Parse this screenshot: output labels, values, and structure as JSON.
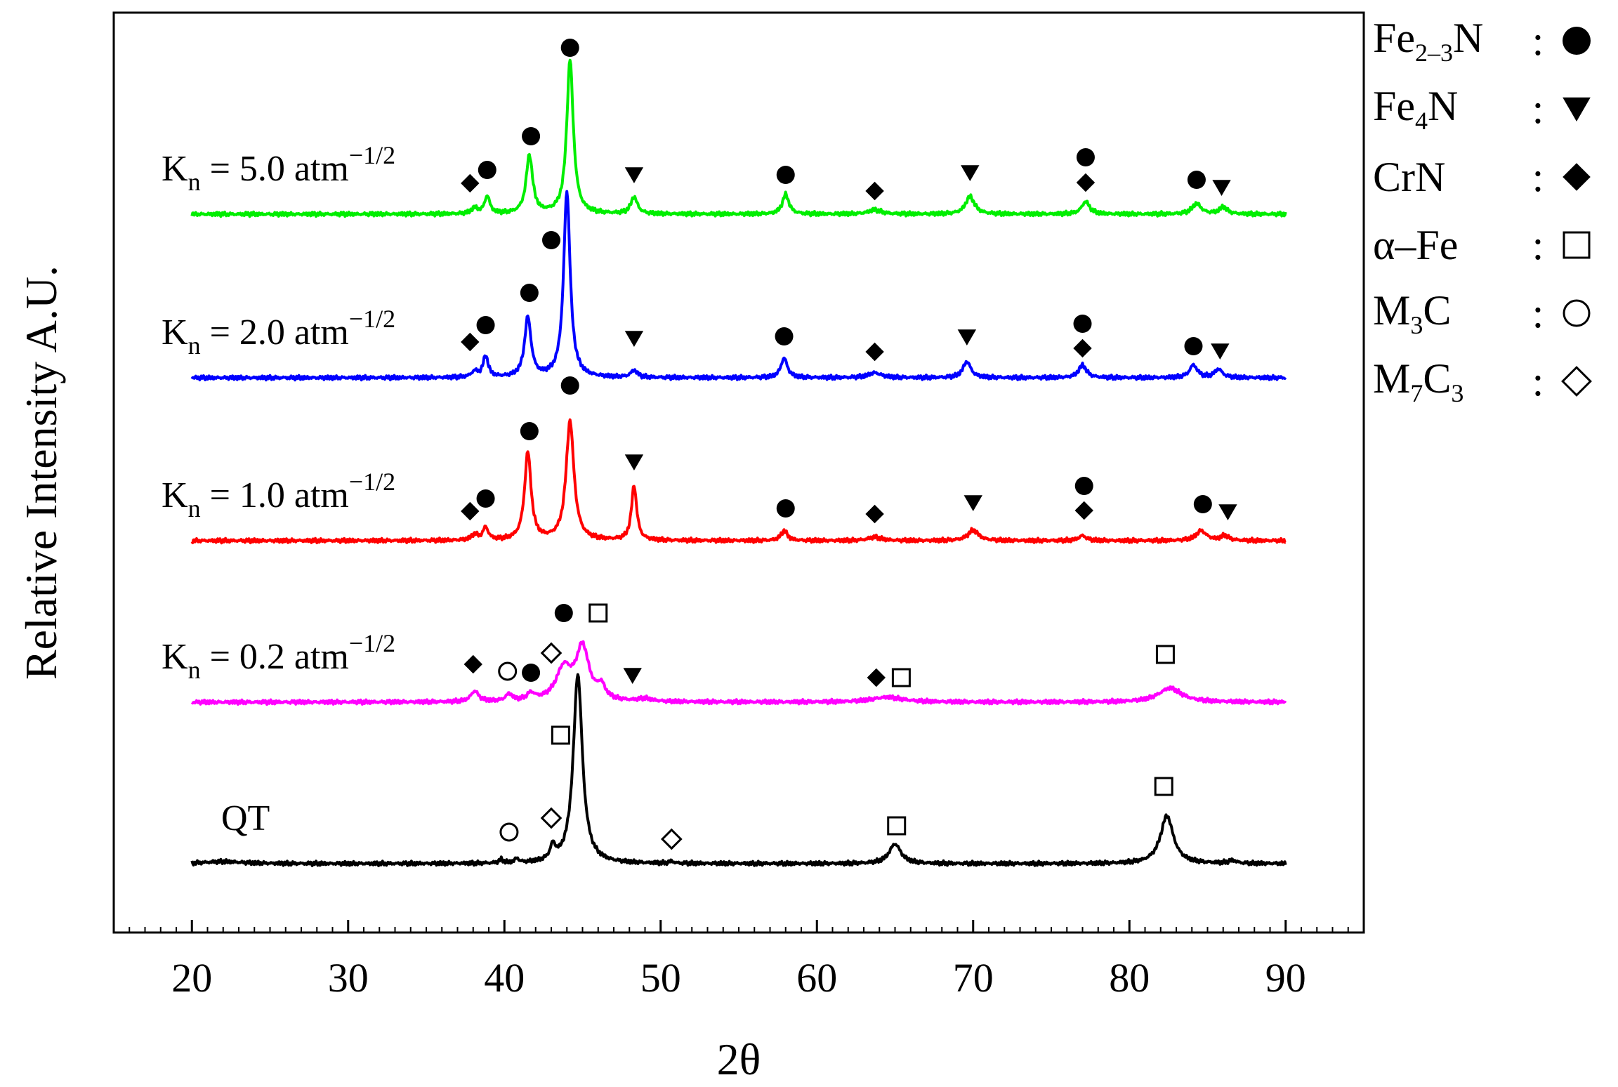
{
  "chart_data": {
    "type": "line",
    "title": "",
    "xlabel": "2θ",
    "ylabel": "Relative Intensity A.U.",
    "xlim": [
      15,
      95
    ],
    "x_ticks": [
      "20",
      "30",
      "40",
      "50",
      "60",
      "70",
      "80",
      "90"
    ],
    "x_tick_values": [
      20,
      30,
      40,
      50,
      60,
      70,
      80,
      90
    ],
    "minor_tick_step": 1,
    "y_ticks": [],
    "series": [
      {
        "name": "QT",
        "label_text": "QT",
        "color": "#000000",
        "baseline": 0,
        "peaks": [
          [
            22,
            3,
            1.5
          ],
          [
            39.8,
            5,
            0.15
          ],
          [
            40.8,
            6,
            0.15
          ],
          [
            43.1,
            20,
            0.2
          ],
          [
            44.7,
            270,
            0.35
          ],
          [
            50.7,
            3,
            0.15
          ],
          [
            65.0,
            28,
            0.45
          ],
          [
            82.4,
            68,
            0.5
          ],
          [
            86.6,
            4,
            0.3
          ]
        ],
        "markers": [
          {
            "symbol": "open-circle",
            "x": 40.3,
            "y": 45
          },
          {
            "symbol": "open-diamond",
            "x": 43.0,
            "y": 65
          },
          {
            "symbol": "open-square",
            "x": 43.6,
            "y": 183
          },
          {
            "symbol": "open-diamond",
            "x": 50.7,
            "y": 35
          },
          {
            "symbol": "open-square",
            "x": 65.1,
            "y": 54
          },
          {
            "symbol": "open-square",
            "x": 82.2,
            "y": 110
          }
        ]
      },
      {
        "name": "Kn = 0.2",
        "label_text": "K",
        "label_sub": "n",
        "label_rest": " = 0.2 atm",
        "label_sup": "−1/2",
        "color": "#ff00ff",
        "baseline": 230,
        "peaks": [
          [
            38.1,
            15,
            0.3
          ],
          [
            40.3,
            10,
            0.25
          ],
          [
            41.7,
            10,
            0.3
          ],
          [
            43.8,
            45,
            0.6
          ],
          [
            45.0,
            75,
            0.5
          ],
          [
            46.2,
            18,
            0.3
          ],
          [
            49.0,
            4,
            0.5
          ],
          [
            64.5,
            7,
            1.2
          ],
          [
            82.6,
            20,
            0.9
          ]
        ],
        "markers": [
          {
            "symbol": "filled-diamond",
            "x": 38.0,
            "y": 54
          },
          {
            "symbol": "open-circle",
            "x": 40.2,
            "y": 44
          },
          {
            "symbol": "filled-circle",
            "x": 41.7,
            "y": 42
          },
          {
            "symbol": "open-diamond",
            "x": 43.0,
            "y": 70
          },
          {
            "symbol": "filled-circle",
            "x": 43.8,
            "y": 127
          },
          {
            "symbol": "open-square",
            "x": 46.0,
            "y": 127
          },
          {
            "symbol": "filled-triangle-down",
            "x": 48.2,
            "y": 38
          },
          {
            "symbol": "filled-diamond",
            "x": 63.8,
            "y": 35
          },
          {
            "symbol": "open-square",
            "x": 65.4,
            "y": 35
          },
          {
            "symbol": "open-square",
            "x": 82.3,
            "y": 68
          }
        ]
      },
      {
        "name": "Kn = 1.0",
        "label_text": "K",
        "label_sub": "n",
        "label_rest": " = 1.0 atm",
        "label_sup": "−1/2",
        "color": "#ff0000",
        "baseline": 460,
        "peaks": [
          [
            38.1,
            8,
            0.25
          ],
          [
            38.8,
            18,
            0.2
          ],
          [
            41.5,
            125,
            0.25
          ],
          [
            44.2,
            170,
            0.3
          ],
          [
            48.3,
            78,
            0.2
          ],
          [
            57.9,
            14,
            0.25
          ],
          [
            63.7,
            5,
            0.5
          ],
          [
            70.0,
            15,
            0.4
          ],
          [
            77.0,
            7,
            0.3
          ],
          [
            84.6,
            14,
            0.4
          ],
          [
            86.1,
            7,
            0.3
          ]
        ],
        "markers": [
          {
            "symbol": "filled-diamond",
            "x": 37.8,
            "y": 42
          },
          {
            "symbol": "filled-circle",
            "x": 38.8,
            "y": 60
          },
          {
            "symbol": "filled-circle",
            "x": 41.6,
            "y": 156
          },
          {
            "symbol": "filled-circle",
            "x": 44.2,
            "y": 221
          },
          {
            "symbol": "filled-triangle-down",
            "x": 48.3,
            "y": 112
          },
          {
            "symbol": "filled-circle",
            "x": 58.0,
            "y": 46
          },
          {
            "symbol": "filled-diamond",
            "x": 63.7,
            "y": 38
          },
          {
            "symbol": "filled-triangle-down",
            "x": 70.0,
            "y": 54
          },
          {
            "symbol": "filled-diamond",
            "x": 77.1,
            "y": 43
          },
          {
            "symbol": "filled-circle",
            "x": 77.1,
            "y": 78
          },
          {
            "symbol": "filled-circle",
            "x": 84.7,
            "y": 52
          },
          {
            "symbol": "filled-triangle-down",
            "x": 86.3,
            "y": 41
          }
        ]
      },
      {
        "name": "Kn = 2.0",
        "label_text": "K",
        "label_sub": "n",
        "label_rest": " = 2.0 atm",
        "label_sup": "−1/2",
        "color": "#0000ff",
        "baseline": 692,
        "peaks": [
          [
            38.1,
            8,
            0.25
          ],
          [
            38.8,
            30,
            0.2
          ],
          [
            41.5,
            85,
            0.25
          ],
          [
            44.0,
            265,
            0.25
          ],
          [
            48.3,
            10,
            0.25
          ],
          [
            57.9,
            28,
            0.25
          ],
          [
            63.7,
            7,
            0.5
          ],
          [
            69.6,
            23,
            0.3
          ],
          [
            77.0,
            18,
            0.3
          ],
          [
            84.1,
            18,
            0.3
          ],
          [
            85.7,
            12,
            0.3
          ]
        ],
        "markers": [
          {
            "symbol": "filled-diamond",
            "x": 37.8,
            "y": 51
          },
          {
            "symbol": "filled-circle",
            "x": 38.8,
            "y": 75
          },
          {
            "symbol": "filled-circle",
            "x": 41.6,
            "y": 121
          },
          {
            "symbol": "filled-circle",
            "x": 43.0,
            "y": 196
          },
          {
            "symbol": "filled-triangle-down",
            "x": 48.3,
            "y": 56
          },
          {
            "symbol": "filled-circle",
            "x": 57.9,
            "y": 59
          },
          {
            "symbol": "filled-diamond",
            "x": 63.7,
            "y": 37
          },
          {
            "symbol": "filled-triangle-down",
            "x": 69.6,
            "y": 58
          },
          {
            "symbol": "filled-diamond",
            "x": 77.0,
            "y": 42
          },
          {
            "symbol": "filled-circle",
            "x": 77.0,
            "y": 77
          },
          {
            "symbol": "filled-circle",
            "x": 84.1,
            "y": 45
          },
          {
            "symbol": "filled-triangle-down",
            "x": 85.8,
            "y": 38
          }
        ]
      },
      {
        "name": "Kn = 5.0",
        "label_text": "K",
        "label_sub": "n",
        "label_rest": " = 5.0 atm",
        "label_sup": "−1/2",
        "color": "#00ee00",
        "baseline": 925,
        "peaks": [
          [
            38.1,
            8,
            0.25
          ],
          [
            38.9,
            25,
            0.2
          ],
          [
            41.6,
            83,
            0.25
          ],
          [
            44.2,
            220,
            0.25
          ],
          [
            48.3,
            24,
            0.25
          ],
          [
            58.0,
            28,
            0.25
          ],
          [
            63.7,
            6,
            0.5
          ],
          [
            69.8,
            25,
            0.35
          ],
          [
            77.2,
            18,
            0.3
          ],
          [
            84.3,
            15,
            0.35
          ],
          [
            86.0,
            10,
            0.3
          ]
        ],
        "markers": [
          {
            "symbol": "filled-diamond",
            "x": 37.8,
            "y": 44
          },
          {
            "symbol": "filled-circle",
            "x": 38.9,
            "y": 63
          },
          {
            "symbol": "filled-circle",
            "x": 41.7,
            "y": 111
          },
          {
            "symbol": "filled-circle",
            "x": 44.2,
            "y": 237
          },
          {
            "symbol": "filled-triangle-down",
            "x": 48.3,
            "y": 56
          },
          {
            "symbol": "filled-circle",
            "x": 58.0,
            "y": 56
          },
          {
            "symbol": "filled-diamond",
            "x": 63.7,
            "y": 33
          },
          {
            "symbol": "filled-triangle-down",
            "x": 69.8,
            "y": 59
          },
          {
            "symbol": "filled-diamond",
            "x": 77.2,
            "y": 45
          },
          {
            "symbol": "filled-circle",
            "x": 77.2,
            "y": 81
          },
          {
            "symbol": "filled-circle",
            "x": 84.3,
            "y": 49
          },
          {
            "symbol": "filled-triangle-down",
            "x": 85.9,
            "y": 38
          }
        ]
      }
    ],
    "legend": {
      "position": "right",
      "items": [
        {
          "label": "Fe",
          "sub": "2–3",
          "rest": "N",
          "symbol": "filled-circle"
        },
        {
          "label": "Fe",
          "sub": "4",
          "rest": "N",
          "symbol": "filled-triangle-down"
        },
        {
          "label": "CrN",
          "sub": "",
          "rest": "",
          "symbol": "filled-diamond"
        },
        {
          "label": "α–Fe",
          "sub": "",
          "rest": "",
          "symbol": "open-square"
        },
        {
          "label": "M",
          "sub": "3",
          "rest": "C",
          "symbol": "open-circle"
        },
        {
          "label": "M",
          "sub": "7",
          "rest": "C",
          "sub2": "3",
          "symbol": "open-diamond"
        }
      ],
      "separator": ":"
    }
  }
}
